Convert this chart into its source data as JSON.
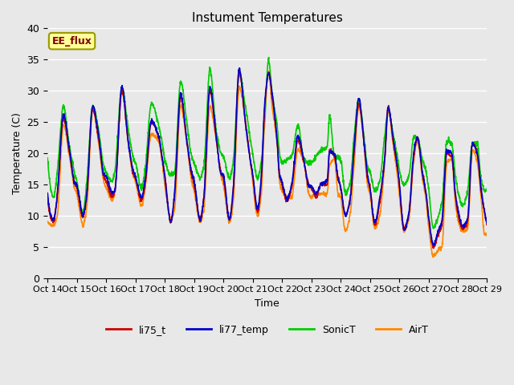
{
  "title": "Instument Temperatures",
  "xlabel": "Time",
  "ylabel": "Temperature (C)",
  "ylim": [
    0,
    40
  ],
  "xlim": [
    0,
    360
  ],
  "x_tick_labels": [
    "Oct 14",
    "Oct 15",
    "Oct 16",
    "Oct 17",
    "Oct 18",
    "Oct 19",
    "Oct 20",
    "Oct 21",
    "Oct 22",
    "Oct 23",
    "Oct 24",
    "Oct 25",
    "Oct 26",
    "Oct 27",
    "Oct 28",
    "Oct 29"
  ],
  "x_tick_positions": [
    0,
    24,
    48,
    72,
    96,
    120,
    144,
    168,
    192,
    216,
    240,
    264,
    288,
    312,
    336,
    360
  ],
  "background_color": "#e8e8e8",
  "plot_bg_color": "#e8e8e8",
  "grid_color": "#ffffff",
  "annotation_text": "EE_flux",
  "annotation_bg": "#ffff99",
  "annotation_border": "#999900",
  "annotation_text_color": "#800000",
  "line_colors": {
    "li75_t": "#cc0000",
    "li77_temp": "#0000cc",
    "SonicT": "#00cc00",
    "AirT": "#ff8800"
  },
  "line_width": 1.2,
  "legend_labels": [
    "li75_t",
    "li77_temp",
    "SonicT",
    "AirT"
  ],
  "figsize": [
    6.4,
    4.8
  ],
  "dpi": 100
}
